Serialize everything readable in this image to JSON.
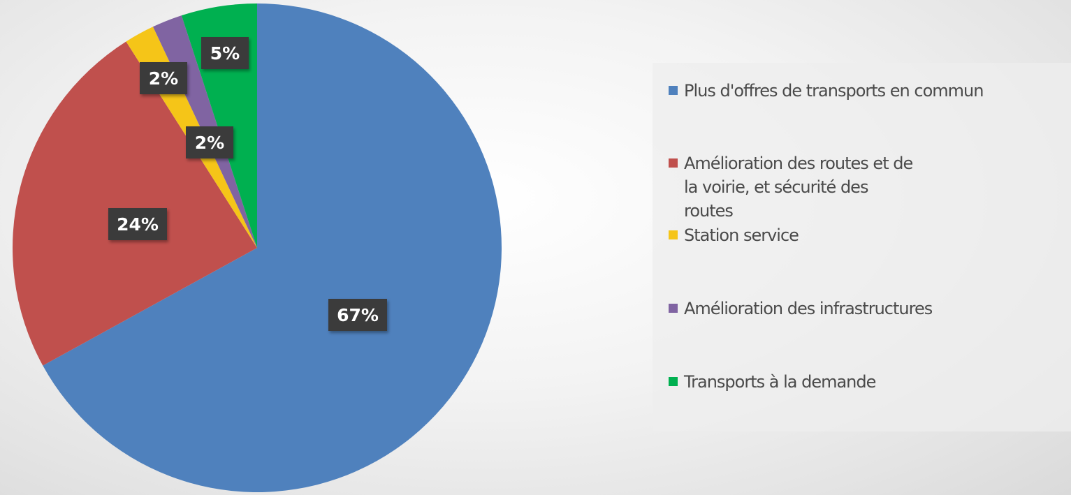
{
  "chart_data": {
    "type": "pie",
    "series": [
      {
        "values": [
          67,
          24,
          2,
          2,
          5
        ],
        "labels": [
          "67%",
          "24%",
          "2%",
          "2%",
          "5%"
        ]
      }
    ],
    "categories": [
      "Plus d'offres de transports en commun",
      "Amélioration des routes et de la voirie, et sécurité des routes",
      "Station service",
      "Amélioration des infrastructures",
      "Transports à la demande"
    ],
    "colors": [
      "#4f81bd",
      "#c0504d",
      "#f5c518",
      "#8064a2",
      "#00b050"
    ],
    "label_style": {
      "background": "#3b3b3b",
      "text_color": "#ffffff"
    },
    "legend_position": "right",
    "start_angle_deg": 0,
    "direction": "clockwise"
  },
  "legend": {
    "items": [
      {
        "label": "Plus d'offres de transports en commun",
        "color": "#4f81bd"
      },
      {
        "label": "Amélioration des routes et de la voirie, et sécurité des routes",
        "color": "#c0504d"
      },
      {
        "label": "Station service",
        "color": "#f5c518"
      },
      {
        "label": "Amélioration des infrastructures",
        "color": "#8064a2"
      },
      {
        "label": "Transports à la demande",
        "color": "#00b050"
      }
    ]
  }
}
